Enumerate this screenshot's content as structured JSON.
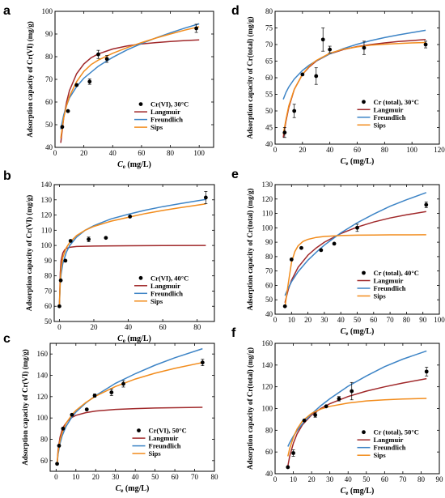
{
  "colors": {
    "langmuir": "#a0282a",
    "freundlich": "#3d84c6",
    "sips": "#f28c1c",
    "points": "#000000",
    "axis": "#000000",
    "background": "#ffffff"
  },
  "chart_data": [
    {
      "id": "a",
      "type": "scatter",
      "panel_label": "a",
      "ylabel": "Adsorption capacity of Cr(VI) (mg/g)",
      "xlabel_main": "C",
      "xlabel_sub": "e",
      "xlabel_unit": " (mg/L)",
      "xlim": [
        0,
        110
      ],
      "ylim": [
        40,
        100
      ],
      "xticks": [
        0,
        20,
        40,
        60,
        80,
        100
      ],
      "yticks": [
        40,
        50,
        60,
        70,
        80,
        90,
        100
      ],
      "legend_position": "right",
      "scatter": {
        "name": "Cr(VI), 30°C",
        "x": [
          5,
          9,
          15,
          24,
          30,
          36,
          98
        ],
        "y": [
          49,
          56,
          67.5,
          69,
          81,
          79,
          92.5
        ],
        "err": [
          0,
          0,
          0,
          1.2,
          1.8,
          1.5,
          1.8
        ]
      },
      "series": [
        {
          "name": "Langmuir",
          "key": "langmuir",
          "x": [
            4,
            6,
            8,
            10,
            15,
            20,
            25,
            30,
            40,
            50,
            60,
            70,
            80,
            90,
            100
          ],
          "y": [
            42,
            53,
            60,
            65,
            72.5,
            76.8,
            79.5,
            81.2,
            83.4,
            84.7,
            85.6,
            86.2,
            86.7,
            87.1,
            87.4
          ]
        },
        {
          "name": "Freundlich",
          "key": "freundlich",
          "x": [
            4,
            6,
            8,
            10,
            15,
            20,
            30,
            40,
            50,
            60,
            70,
            80,
            90,
            100
          ],
          "y": [
            48,
            54.3,
            58.5,
            61.8,
            66.8,
            70.5,
            75.8,
            79.7,
            83,
            85.8,
            88.3,
            90.5,
            92.6,
            94.5
          ]
        },
        {
          "name": "Sips",
          "key": "sips",
          "x": [
            4,
            6,
            8,
            10,
            15,
            20,
            25,
            30,
            40,
            50,
            60,
            70,
            80,
            90,
            100
          ],
          "y": [
            44,
            53,
            58.5,
            62.5,
            69,
            73.5,
            76.5,
            78.5,
            81.5,
            84,
            86.2,
            88.2,
            90,
            91.7,
            93.2
          ]
        }
      ]
    },
    {
      "id": "d",
      "type": "scatter",
      "panel_label": "d",
      "ylabel": "Adsorption capacity of Cr(total) (mg/g)",
      "xlabel_main": "C",
      "xlabel_sub": "e",
      "xlabel_unit": " (mg/L)",
      "xlim": [
        0,
        120
      ],
      "ylim": [
        40,
        80
      ],
      "xticks": [
        0,
        20,
        40,
        60,
        80,
        100,
        120
      ],
      "yticks": [
        40,
        45,
        50,
        55,
        60,
        65,
        70,
        75,
        80
      ],
      "legend_position": "right",
      "scatter": {
        "name": "Cr (total), 30°C",
        "x": [
          7,
          14,
          20,
          30,
          35,
          40,
          65,
          110
        ],
        "y": [
          43.5,
          50,
          61,
          60.5,
          71.5,
          68.5,
          69,
          70
        ],
        "err": [
          1.5,
          2,
          0,
          2.5,
          3.5,
          1,
          2,
          1
        ]
      },
      "series": [
        {
          "name": "Langmuir",
          "key": "langmuir",
          "x": [
            6,
            8,
            10,
            14,
            20,
            25,
            30,
            40,
            50,
            60,
            70,
            80,
            90,
            100,
            110
          ],
          "y": [
            42,
            47,
            51,
            56.5,
            61,
            63.3,
            65,
            67.2,
            68.5,
            69.4,
            70,
            70.5,
            70.9,
            71.2,
            71.5
          ]
        },
        {
          "name": "Freundlich",
          "key": "freundlich",
          "x": [
            6,
            8,
            10,
            14,
            20,
            25,
            30,
            40,
            50,
            60,
            70,
            80,
            90,
            100,
            110
          ],
          "y": [
            53.5,
            55.6,
            57.2,
            59.6,
            62.2,
            63.8,
            65.1,
            67.2,
            68.8,
            70.1,
            71.2,
            72.1,
            72.9,
            73.6,
            74.3
          ]
        },
        {
          "name": "Sips",
          "key": "sips",
          "x": [
            6,
            8,
            10,
            14,
            20,
            25,
            30,
            40,
            50,
            60,
            70,
            80,
            90,
            100,
            110
          ],
          "y": [
            43,
            47.5,
            51.5,
            56.5,
            61,
            63.5,
            65.2,
            67.4,
            68.6,
            69.3,
            69.8,
            70.1,
            70.3,
            70.5,
            70.6
          ]
        }
      ]
    },
    {
      "id": "b",
      "type": "scatter",
      "panel_label": "b",
      "ylabel": "Adsorption capacity of Cr(VI) (mg/g)",
      "xlabel_main": "C",
      "xlabel_sub": "e",
      "xlabel_unit": " (mg/L)",
      "xlim": [
        -3,
        90
      ],
      "ylim": [
        50,
        140
      ],
      "xticks": [
        0,
        20,
        40,
        60,
        80
      ],
      "yticks": [
        50,
        60,
        70,
        80,
        90,
        100,
        110,
        120,
        130,
        140
      ],
      "legend_position": "right",
      "scatter": {
        "name": "Cr(VI), 40°C",
        "x": [
          0,
          0.8,
          3.5,
          6.5,
          17,
          27,
          41,
          85
        ],
        "y": [
          60,
          77,
          90,
          103,
          104,
          105,
          119,
          131.5
        ],
        "err": [
          0,
          0,
          0,
          0,
          1.5,
          0,
          0,
          4
        ]
      },
      "series": [
        {
          "name": "Langmuir",
          "key": "langmuir",
          "x": [
            0,
            0.5,
            1,
            2,
            3,
            4,
            6,
            10,
            20,
            40,
            60,
            85
          ],
          "y": [
            60,
            82,
            90,
            95,
            97,
            98,
            98.8,
            99.3,
            99.6,
            99.8,
            99.9,
            100
          ]
        },
        {
          "name": "Freundlich",
          "key": "freundlich",
          "x": [
            0,
            0.5,
            1,
            2,
            4,
            6,
            10,
            15,
            20,
            30,
            40,
            50,
            60,
            70,
            85
          ],
          "y": [
            60,
            75,
            81,
            88,
            95.5,
            100,
            105.5,
            110,
            113,
            117.5,
            120.5,
            123.2,
            125.5,
            127.5,
            130.3
          ]
        },
        {
          "name": "Sips",
          "key": "sips",
          "x": [
            0,
            0.5,
            1,
            2,
            4,
            6,
            10,
            15,
            20,
            30,
            40,
            50,
            60,
            70,
            85
          ],
          "y": [
            60,
            78,
            85,
            92,
            98.5,
            102,
            106.5,
            110,
            112.5,
            116,
            118.5,
            121,
            123,
            124.8,
            127.3
          ]
        }
      ]
    },
    {
      "id": "e",
      "type": "scatter",
      "panel_label": "e",
      "ylabel": "Adsorption capacity of Cr(total) (mg/g)",
      "xlabel_main": "C",
      "xlabel_sub": "e",
      "xlabel_unit": " (mg/L)",
      "xlim": [
        0,
        100
      ],
      "ylim": [
        40,
        130
      ],
      "xticks": [
        0,
        10,
        20,
        30,
        40,
        50,
        60,
        70,
        80,
        90,
        100
      ],
      "yticks": [
        40,
        50,
        60,
        70,
        80,
        90,
        100,
        110,
        120,
        130
      ],
      "legend_position": "right",
      "scatter": {
        "name": "Cr (total), 40°C",
        "x": [
          6,
          10,
          16,
          28,
          36,
          50,
          92
        ],
        "y": [
          45.5,
          78,
          86,
          84.5,
          89,
          100,
          116
        ],
        "err": [
          0,
          0,
          0,
          0,
          0,
          2.5,
          2
        ]
      },
      "series": [
        {
          "name": "Langmuir",
          "key": "langmuir",
          "x": [
            6,
            8,
            10,
            14,
            20,
            25,
            30,
            40,
            50,
            60,
            70,
            80,
            92
          ],
          "y": [
            48,
            57,
            63.5,
            72.5,
            81,
            86,
            90,
            96,
            100.5,
            104,
            106.8,
            109,
            111.3
          ]
        },
        {
          "name": "Freundlich",
          "key": "freundlich",
          "x": [
            6,
            8,
            10,
            14,
            20,
            25,
            30,
            40,
            50,
            60,
            70,
            80,
            92
          ],
          "y": [
            53,
            58,
            62.5,
            69.5,
            77.5,
            83,
            88,
            96.5,
            103.5,
            109.5,
            115,
            119.5,
            124.5
          ]
        },
        {
          "name": "Sips",
          "key": "sips",
          "x": [
            6,
            8,
            10,
            12,
            14,
            17,
            20,
            25,
            30,
            40,
            50,
            60,
            70,
            80,
            92
          ],
          "y": [
            45,
            61,
            76,
            83.5,
            87.5,
            90.5,
            92,
            93.3,
            94,
            94.6,
            94.9,
            95,
            95.1,
            95.1,
            95.2
          ]
        }
      ]
    },
    {
      "id": "c",
      "type": "scatter",
      "panel_label": "c",
      "ylabel": "Adsorption capacity of Cr(VI) (mg/g)",
      "xlabel_main": "C",
      "xlabel_sub": "e",
      "xlabel_unit": " (mg/L)",
      "xlim": [
        -3,
        80
      ],
      "ylim": [
        50,
        170
      ],
      "xticks": [
        0,
        10,
        20,
        30,
        40,
        50,
        60,
        70,
        80
      ],
      "yticks": [
        60,
        80,
        100,
        120,
        140,
        160
      ],
      "legend_position": "right",
      "scatter": {
        "name": "Cr(VI), 50°C",
        "x": [
          0.5,
          1.5,
          3.5,
          8,
          15.5,
          19.5,
          28,
          34,
          74
        ],
        "y": [
          57,
          74,
          90,
          103,
          108,
          121,
          124,
          132,
          152
        ],
        "err": [
          0,
          0,
          0,
          0,
          0,
          1.5,
          3,
          3,
          3
        ]
      },
      "series": [
        {
          "name": "Langmuir",
          "key": "langmuir",
          "x": [
            0.5,
            1,
            2,
            3,
            4,
            6,
            8,
            10,
            15,
            20,
            30,
            40,
            50,
            60,
            74
          ],
          "y": [
            57,
            70,
            82,
            88.5,
            92.5,
            97.5,
            100.5,
            102.5,
            105,
            106.5,
            108,
            108.8,
            109.3,
            109.6,
            110
          ]
        },
        {
          "name": "Freundlich",
          "key": "freundlich",
          "x": [
            0.5,
            1,
            2,
            3,
            5,
            8,
            10,
            15,
            20,
            30,
            40,
            50,
            60,
            74
          ],
          "y": [
            57,
            66,
            76,
            83,
            92,
            101,
            105.5,
            114,
            121,
            132.5,
            141.5,
            149.5,
            156.5,
            165
          ]
        },
        {
          "name": "Sips",
          "key": "sips",
          "x": [
            0.5,
            1,
            2,
            3,
            5,
            8,
            10,
            15,
            20,
            30,
            40,
            50,
            60,
            74
          ],
          "y": [
            57,
            68,
            79,
            86,
            95,
            103,
            107,
            114.5,
            120.5,
            129.5,
            136.5,
            142,
            146.5,
            152
          ]
        }
      ]
    },
    {
      "id": "f",
      "type": "scatter",
      "panel_label": "f",
      "ylabel": "Adsorption capacity of Cr(total) (mg/g)",
      "xlabel_main": "C",
      "xlabel_sub": "e",
      "xlabel_unit": " (mg/L)",
      "xlim": [
        0,
        90
      ],
      "ylim": [
        40,
        160
      ],
      "xticks": [
        0,
        10,
        20,
        30,
        40,
        50,
        60,
        70,
        80,
        90
      ],
      "yticks": [
        40,
        60,
        80,
        100,
        120,
        140,
        160
      ],
      "legend_position": "right",
      "scatter": {
        "name": "Cr (total), 50°C",
        "x": [
          7,
          10,
          16,
          22,
          28,
          35,
          42,
          83
        ],
        "y": [
          46,
          59,
          89,
          94,
          102,
          109,
          116,
          134
        ],
        "err": [
          0,
          3,
          0,
          2,
          0,
          2,
          8,
          4
        ]
      },
      "series": [
        {
          "name": "Langmuir",
          "key": "langmuir",
          "x": [
            7,
            8,
            10,
            12,
            15,
            20,
            25,
            30,
            40,
            50,
            60,
            70,
            83
          ],
          "y": [
            47,
            56,
            68,
            76.5,
            85,
            94,
            100,
            104.5,
            111,
            116,
            120,
            123.5,
            127.5
          ]
        },
        {
          "name": "Freundlich",
          "key": "freundlich",
          "x": [
            7,
            8,
            10,
            12,
            15,
            20,
            25,
            30,
            40,
            50,
            60,
            70,
            83
          ],
          "y": [
            65,
            68.5,
            74.5,
            79.5,
            86,
            95,
            102.5,
            109,
            120.5,
            130,
            138.5,
            145.5,
            153
          ]
        },
        {
          "name": "Sips",
          "key": "sips",
          "x": [
            7,
            8,
            10,
            12,
            15,
            20,
            25,
            30,
            40,
            50,
            60,
            70,
            83
          ],
          "y": [
            56,
            63,
            73.5,
            81,
            88.5,
            95.5,
            99.5,
            102,
            105,
            107,
            108,
            108.7,
            109.3
          ]
        }
      ]
    }
  ]
}
